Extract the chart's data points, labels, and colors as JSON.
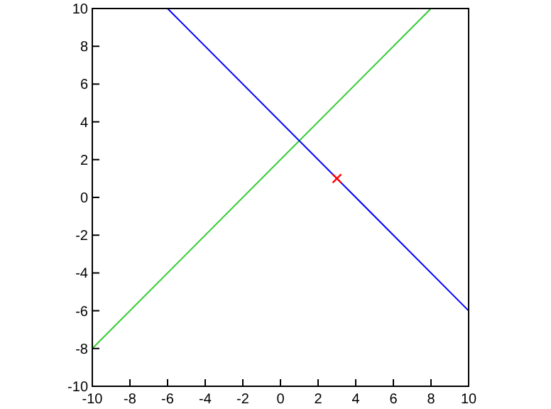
{
  "chart_data": {
    "type": "line",
    "xlim": [
      -10,
      10
    ],
    "ylim": [
      -10,
      10
    ],
    "xticks": [
      -10,
      -8,
      -6,
      -4,
      -2,
      0,
      2,
      4,
      6,
      8,
      10
    ],
    "yticks": [
      -10,
      -8,
      -6,
      -4,
      -2,
      0,
      2,
      4,
      6,
      8,
      10
    ],
    "series": [
      {
        "color": "#33cc33",
        "x": [
          -10,
          8
        ],
        "values": [
          -8,
          10
        ]
      },
      {
        "color": "#0000ff",
        "x": [
          -6,
          10
        ],
        "values": [
          10,
          -6
        ]
      },
      {
        "type": "scatter",
        "color": "#ff0000",
        "marker": "cross",
        "x": [
          3
        ],
        "values": [
          1
        ]
      }
    ]
  }
}
